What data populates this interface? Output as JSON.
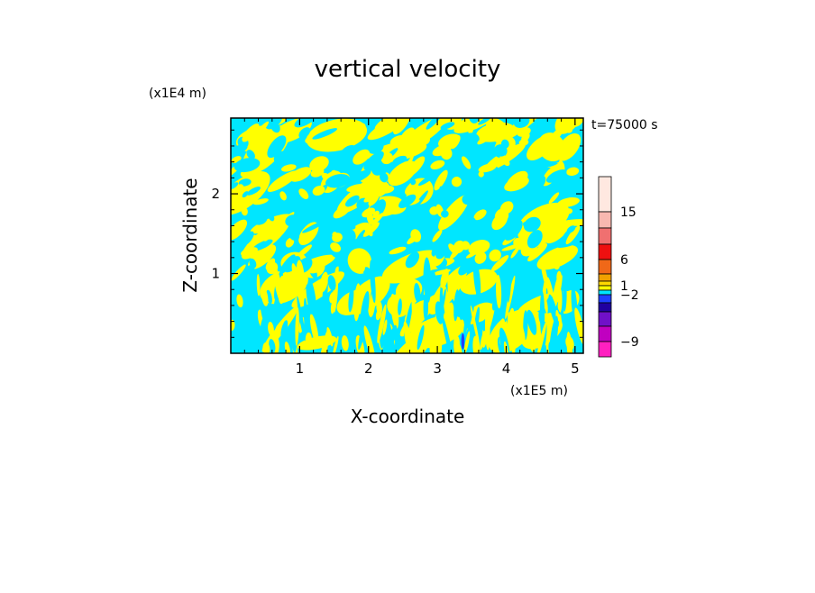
{
  "chart_data": {
    "type": "heatmap",
    "title": "vertical velocity",
    "xlabel": "X-coordinate",
    "ylabel": "Z-coordinate",
    "x_unit": "(x1E5 m)",
    "y_unit": "(x1E4 m)",
    "time_label": "t=75000 s",
    "xlim": [
      0,
      5.12
    ],
    "ylim": [
      0,
      2.95
    ],
    "x_ticks": [
      1,
      2,
      3,
      4,
      5
    ],
    "x_tick_labels": [
      "1",
      "2",
      "3",
      "4",
      "5"
    ],
    "y_ticks": [
      1,
      2
    ],
    "y_tick_labels": [
      "1",
      "2"
    ],
    "colorbar": {
      "levels_top_to_bottom": [
        "#ffe8e0",
        "#f8b8b0",
        "#f07070",
        "#ee1010",
        "#f06818",
        "#f0a000",
        "#ffd800",
        "#ffff00",
        "#00e6ff",
        "#1f40ff",
        "#2000a0",
        "#7010c8",
        "#c000c0",
        "#ff20c0"
      ],
      "tick_values": [
        15,
        6,
        1,
        -2,
        -9
      ],
      "tick_labels": [
        "15",
        "6",
        "1",
        "−2",
        "−9"
      ]
    },
    "field_colors": {
      "positive": "#ffff00",
      "negative": "#00e6ff",
      "strong_negative": "#1f40ff"
    }
  }
}
